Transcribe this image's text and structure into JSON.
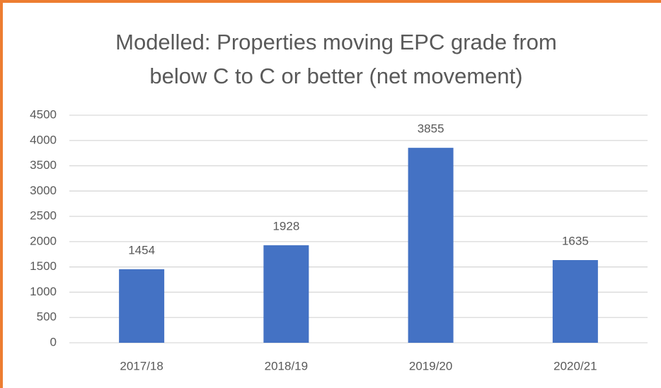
{
  "chart_data": {
    "type": "bar",
    "title": "Modelled: Properties moving EPC grade from below C to C or better (net movement)",
    "categories": [
      "2017/18",
      "2018/19",
      "2019/20",
      "2020/21"
    ],
    "values": [
      1454,
      1928,
      3855,
      1635
    ],
    "color": "#4472c4",
    "ylim": [
      0,
      4500
    ],
    "yticks": [
      0,
      500,
      1000,
      1500,
      2000,
      2500,
      3000,
      3500,
      4000,
      4500
    ],
    "grid": true
  }
}
